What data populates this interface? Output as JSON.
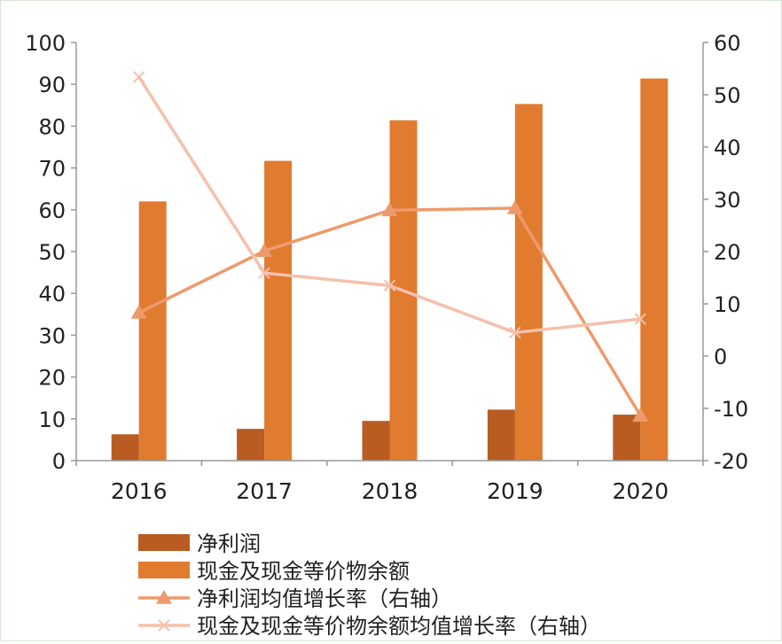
{
  "chart_data": {
    "type": "bar",
    "categories": [
      "2016",
      "2017",
      "2018",
      "2019",
      "2020"
    ],
    "ylim": [
      0,
      100
    ],
    "y_ticks": [
      "0",
      "10",
      "20",
      "30",
      "40",
      "50",
      "60",
      "70",
      "80",
      "90",
      "100"
    ],
    "y2lim": [
      -20,
      60
    ],
    "y2_ticks": [
      "-20",
      "-10",
      "0",
      "10",
      "20",
      "30",
      "40",
      "50",
      "60"
    ],
    "grid": false,
    "legend_position": "bottom",
    "series": [
      {
        "name": "净利润",
        "kind": "bar",
        "axis": "left",
        "color": "#b85c22",
        "values": [
          6.3,
          7.6,
          9.5,
          12.2,
          11.0
        ]
      },
      {
        "name": "现金及现金等价物余额",
        "kind": "bar",
        "axis": "left",
        "color": "#e07b30",
        "values": [
          62.0,
          71.7,
          81.4,
          85.3,
          91.4
        ]
      },
      {
        "name": "净利润均值增长率（右轴）",
        "kind": "line",
        "marker": "triangle",
        "axis": "right",
        "color": "#ee9a6c",
        "values": [
          8.3,
          20.1,
          27.9,
          28.3,
          -11.4
        ]
      },
      {
        "name": "现金及现金等价物余额均值增长率（右轴）",
        "kind": "line",
        "marker": "x",
        "axis": "right",
        "color": "#f5c0ac",
        "values": [
          53.4,
          15.9,
          13.5,
          4.5,
          7.1
        ]
      }
    ]
  }
}
